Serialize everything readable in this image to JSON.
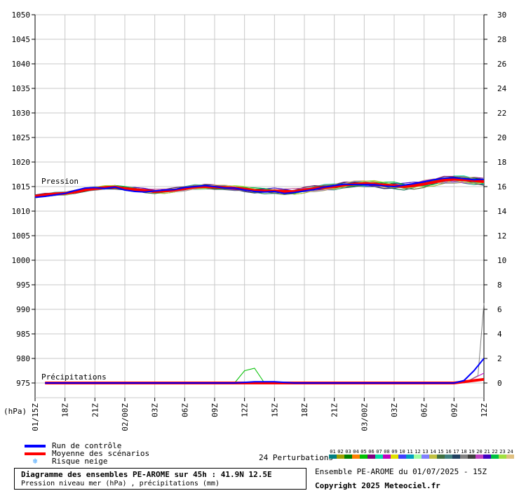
{
  "chart_data": {
    "type": "line",
    "y_left": {
      "ticks": [
        1050,
        1045,
        1040,
        1035,
        1030,
        1025,
        1020,
        1015,
        1010,
        1005,
        1000,
        995,
        990,
        985,
        980,
        975
      ],
      "lim": [
        972,
        1051
      ],
      "unit_label": "(hPa)"
    },
    "y_right": {
      "ticks": [
        30,
        28,
        26,
        24,
        22,
        20,
        18,
        16,
        14,
        12,
        10,
        8,
        6,
        4,
        2,
        0
      ]
    },
    "x_ticks": [
      "01/15Z",
      "18Z",
      "21Z",
      "02/00Z",
      "03Z",
      "06Z",
      "09Z",
      "12Z",
      "15Z",
      "18Z",
      "21Z",
      "03/00Z",
      "03Z",
      "06Z",
      "09Z",
      "12Z"
    ],
    "x_hours": [
      0,
      45
    ],
    "section_labels": {
      "pressure": "Pression",
      "precip": "Précipitations"
    },
    "series": [
      {
        "name": "Moyenne des scénarios",
        "kind": "pressure_mean",
        "color": "#ff0000",
        "x": [
          0,
          1,
          2,
          3,
          4,
          5,
          6,
          7,
          8,
          9,
          10,
          11,
          12,
          13,
          14,
          15,
          16,
          17,
          18,
          19,
          20,
          21,
          22,
          23,
          24,
          25,
          26,
          27,
          28,
          29,
          30,
          31,
          32,
          33,
          34,
          35,
          36,
          37,
          38,
          39,
          40,
          41,
          42,
          43,
          44,
          45
        ],
        "y": [
          1013.0,
          1013.3,
          1013.5,
          1013.6,
          1013.9,
          1014.3,
          1014.6,
          1014.8,
          1014.9,
          1014.6,
          1014.4,
          1014.2,
          1014.0,
          1014.1,
          1014.3,
          1014.6,
          1014.9,
          1015.0,
          1014.9,
          1014.8,
          1014.7,
          1014.5,
          1014.2,
          1014.1,
          1014.1,
          1014.0,
          1014.0,
          1014.3,
          1014.6,
          1014.8,
          1015.0,
          1015.3,
          1015.5,
          1015.6,
          1015.5,
          1015.3,
          1015.2,
          1015.0,
          1015.2,
          1015.5,
          1015.9,
          1016.3,
          1016.5,
          1016.4,
          1016.2,
          1016.0
        ]
      },
      {
        "name": "Run de contrôle",
        "kind": "pressure_control",
        "color": "#0000ff",
        "x": [
          0,
          1,
          2,
          3,
          4,
          5,
          6,
          7,
          8,
          9,
          10,
          11,
          12,
          13,
          14,
          15,
          16,
          17,
          18,
          19,
          20,
          21,
          22,
          23,
          24,
          25,
          26,
          27,
          28,
          29,
          30,
          31,
          32,
          33,
          34,
          35,
          36,
          37,
          38,
          39,
          40,
          41,
          42,
          43,
          44,
          45
        ],
        "y": [
          1012.8,
          1013.0,
          1013.3,
          1013.6,
          1014.2,
          1014.7,
          1014.8,
          1014.6,
          1014.9,
          1014.3,
          1014.0,
          1013.9,
          1014.1,
          1014.3,
          1014.4,
          1014.8,
          1015.0,
          1015.2,
          1015.0,
          1014.7,
          1014.7,
          1014.3,
          1014.0,
          1013.9,
          1014.0,
          1013.6,
          1013.8,
          1014.1,
          1014.4,
          1014.9,
          1015.2,
          1015.5,
          1015.4,
          1015.4,
          1015.4,
          1015.1,
          1015.0,
          1015.3,
          1015.6,
          1016.0,
          1016.4,
          1016.7,
          1016.8,
          1016.6,
          1016.4,
          1016.5
        ]
      },
      {
        "name": "Moyenne des scénarios",
        "kind": "precip_mean",
        "color": "#ff0000",
        "x": [
          1,
          20,
          22,
          24,
          26,
          28,
          42,
          43,
          44,
          45
        ],
        "y": [
          0,
          0,
          0,
          0,
          0,
          0,
          0,
          0.1,
          0.2,
          0.3
        ]
      },
      {
        "name": "Run de contrôle",
        "kind": "precip_control",
        "color": "#0000ff",
        "x": [
          1,
          20,
          22,
          24,
          26,
          28,
          42,
          43,
          44,
          45
        ],
        "y": [
          0,
          0,
          0.1,
          0.1,
          0,
          0,
          0,
          0.2,
          1.0,
          2.0
        ]
      }
    ]
  },
  "legend": {
    "control": {
      "label": "Run de contrôle",
      "color": "#0000ff"
    },
    "mean": {
      "label": "Moyenne des scénarios",
      "color": "#ff0000"
    },
    "snow": {
      "label": "Risque neige",
      "icon": "snowflake-icon"
    }
  },
  "perturbations": {
    "label": "24 Perturbations",
    "items": [
      {
        "num": "01",
        "color": "#008080"
      },
      {
        "num": "02",
        "color": "#a0a000"
      },
      {
        "num": "03",
        "color": "#008000"
      },
      {
        "num": "04",
        "color": "#ff8000"
      },
      {
        "num": "05",
        "color": "#00c000"
      },
      {
        "num": "06",
        "color": "#800080"
      },
      {
        "num": "07",
        "color": "#00e0a0"
      },
      {
        "num": "08",
        "color": "#c000c0"
      },
      {
        "num": "09",
        "color": "#e0e000"
      },
      {
        "num": "10",
        "color": "#4040ff"
      },
      {
        "num": "11",
        "color": "#00a0c0"
      },
      {
        "num": "12",
        "color": "#a0ffa0"
      },
      {
        "num": "13",
        "color": "#8080ff"
      },
      {
        "num": "14",
        "color": "#c0c040"
      },
      {
        "num": "15",
        "color": "#407040"
      },
      {
        "num": "16",
        "color": "#408080"
      },
      {
        "num": "17",
        "color": "#204060"
      },
      {
        "num": "18",
        "color": "#808080"
      },
      {
        "num": "19",
        "color": "#404040"
      },
      {
        "num": "20",
        "color": "#c040c0"
      },
      {
        "num": "21",
        "color": "#4000c0"
      },
      {
        "num": "22",
        "color": "#00c040"
      },
      {
        "num": "23",
        "color": "#a0e040"
      },
      {
        "num": "24",
        "color": "#e0c080"
      }
    ]
  },
  "title": {
    "main": "Diagramme des ensembles PE-AROME sur 45h : 41.9N 12.5E",
    "sub": "Pression niveau mer (hPa) , précipitations (mm)"
  },
  "run_info": "Ensemble PE-AROME du 01/07/2025 - 15Z",
  "copyright": "Copyright 2025 Meteociel.fr"
}
